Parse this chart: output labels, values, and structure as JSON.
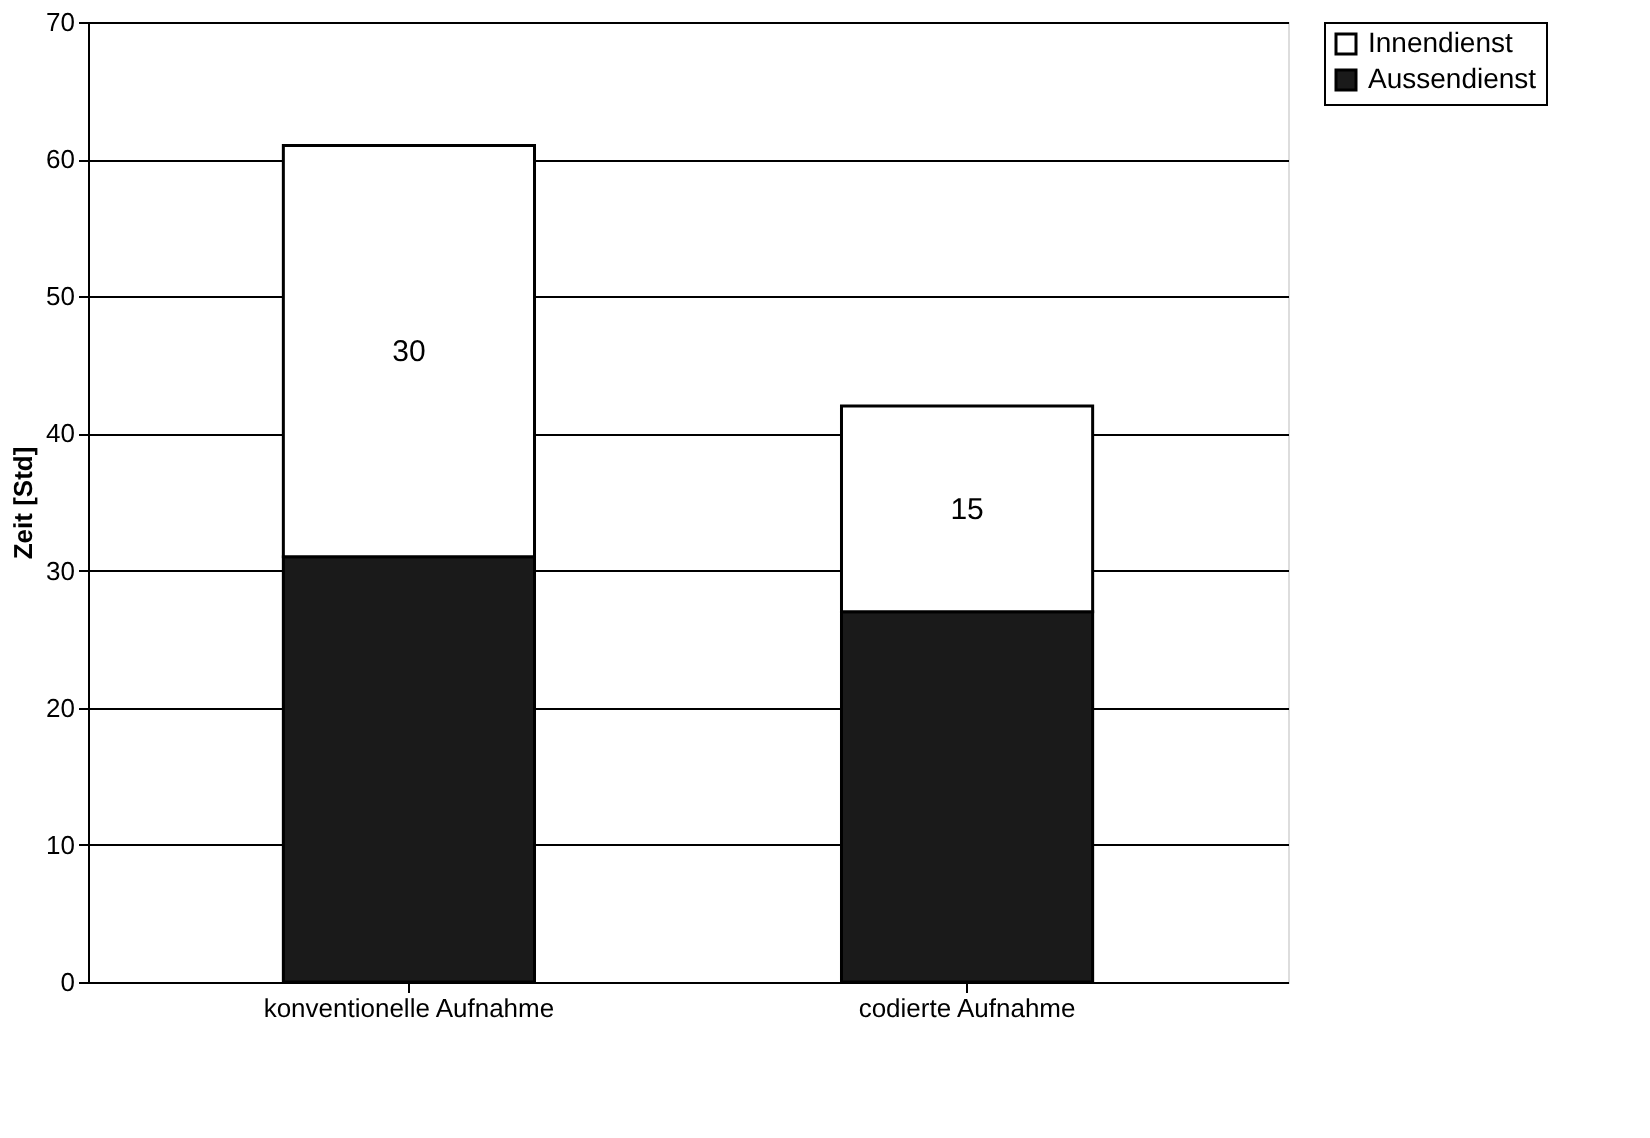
{
  "chart_data": {
    "type": "bar",
    "stacked": true,
    "ylabel": "Zeit [Std]",
    "categories": [
      "konventionelle Aufnahme",
      "codierte Aufnahme"
    ],
    "series": [
      {
        "name": "Aussendienst",
        "color": "#1a1a1a",
        "values": [
          31,
          27
        ]
      },
      {
        "name": "Innendienst",
        "color": "#ffffff",
        "values": [
          30,
          15
        ],
        "value_labels": [
          "30",
          "15"
        ]
      }
    ],
    "ylim": [
      0,
      70
    ],
    "yticks": [
      0,
      10,
      20,
      30,
      40,
      50,
      60,
      70
    ],
    "grid": "y",
    "legend": "right"
  }
}
